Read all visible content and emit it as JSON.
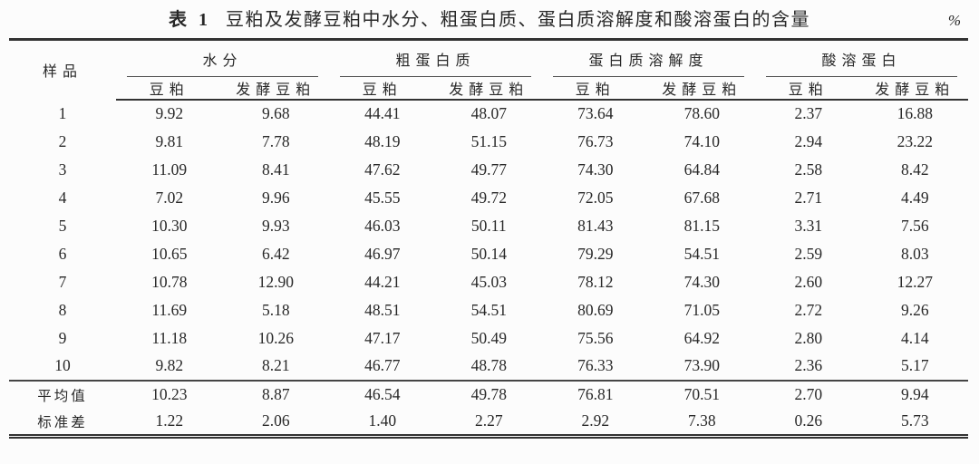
{
  "title": {
    "prefix": "表 1",
    "text": "豆粕及发酵豆粕中水分、粗蛋白质、蛋白质溶解度和酸溶蛋白的含量"
  },
  "unit": "%",
  "colors": {
    "background": "#fcfcfc",
    "ink": "#282828",
    "rule": "#333333"
  },
  "table": {
    "sample_header": "样品",
    "groups": [
      {
        "label": "水分",
        "sub": [
          "豆粕",
          "发酵豆粕"
        ]
      },
      {
        "label": "粗蛋白质",
        "sub": [
          "豆粕",
          "发酵豆粕"
        ]
      },
      {
        "label": "蛋白质溶解度",
        "sub": [
          "豆粕",
          "发酵豆粕"
        ]
      },
      {
        "label": "酸溶蛋白",
        "sub": [
          "豆粕",
          "发酵豆粕"
        ]
      }
    ],
    "summary_start_index": 10,
    "rows": [
      {
        "sample": "1",
        "values": [
          "9.92",
          "9.68",
          "44.41",
          "48.07",
          "73.64",
          "78.60",
          "2.37",
          "16.88"
        ]
      },
      {
        "sample": "2",
        "values": [
          "9.81",
          "7.78",
          "48.19",
          "51.15",
          "76.73",
          "74.10",
          "2.94",
          "23.22"
        ]
      },
      {
        "sample": "3",
        "values": [
          "11.09",
          "8.41",
          "47.62",
          "49.77",
          "74.30",
          "64.84",
          "2.58",
          "8.42"
        ]
      },
      {
        "sample": "4",
        "values": [
          "7.02",
          "9.96",
          "45.55",
          "49.72",
          "72.05",
          "67.68",
          "2.71",
          "4.49"
        ]
      },
      {
        "sample": "5",
        "values": [
          "10.30",
          "9.93",
          "46.03",
          "50.11",
          "81.43",
          "81.15",
          "3.31",
          "7.56"
        ]
      },
      {
        "sample": "6",
        "values": [
          "10.65",
          "6.42",
          "46.97",
          "50.14",
          "79.29",
          "54.51",
          "2.59",
          "8.03"
        ]
      },
      {
        "sample": "7",
        "values": [
          "10.78",
          "12.90",
          "44.21",
          "45.03",
          "78.12",
          "74.30",
          "2.60",
          "12.27"
        ]
      },
      {
        "sample": "8",
        "values": [
          "11.69",
          "5.18",
          "48.51",
          "54.51",
          "80.69",
          "71.05",
          "2.72",
          "9.26"
        ]
      },
      {
        "sample": "9",
        "values": [
          "11.18",
          "10.26",
          "47.17",
          "50.49",
          "75.56",
          "64.92",
          "2.80",
          "4.14"
        ]
      },
      {
        "sample": "10",
        "values": [
          "9.82",
          "8.21",
          "46.77",
          "48.78",
          "76.33",
          "73.90",
          "2.36",
          "5.17"
        ]
      },
      {
        "sample": "平均值",
        "values": [
          "10.23",
          "8.87",
          "46.54",
          "49.78",
          "76.81",
          "70.51",
          "2.70",
          "9.94"
        ]
      },
      {
        "sample": "标准差",
        "values": [
          "1.22",
          "2.06",
          "1.40",
          "2.27",
          "2.92",
          "7.38",
          "0.26",
          "5.73"
        ]
      }
    ]
  }
}
